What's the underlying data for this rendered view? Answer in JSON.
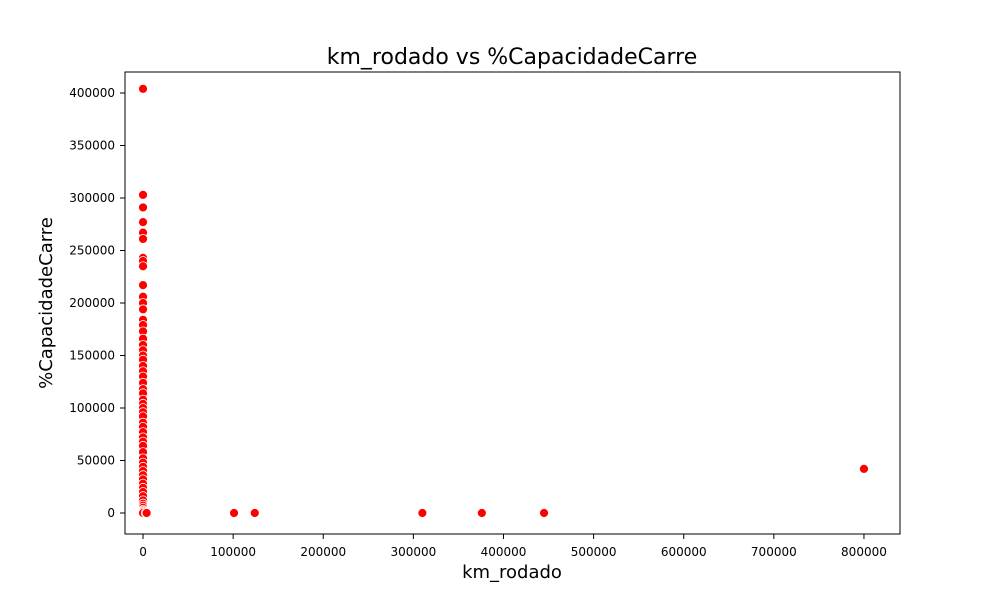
{
  "chart_data": {
    "type": "scatter",
    "title": "km_rodado vs %CapacidadeCarre",
    "xlabel": "km_rodado",
    "ylabel": "%CapacidadeCarre",
    "xlim": [
      -20000,
      840000
    ],
    "ylim": [
      -20000,
      420000
    ],
    "x_ticks": [
      {
        "value": 0,
        "label": "0"
      },
      {
        "value": 100000,
        "label": "100000"
      },
      {
        "value": 200000,
        "label": "200000"
      },
      {
        "value": 300000,
        "label": "300000"
      },
      {
        "value": 400000,
        "label": "400000"
      },
      {
        "value": 500000,
        "label": "500000"
      },
      {
        "value": 600000,
        "label": "600000"
      },
      {
        "value": 700000,
        "label": "700000"
      },
      {
        "value": 800000,
        "label": "800000"
      }
    ],
    "y_ticks": [
      {
        "value": 0,
        "label": "0"
      },
      {
        "value": 50000,
        "label": "50000"
      },
      {
        "value": 100000,
        "label": "100000"
      },
      {
        "value": 150000,
        "label": "150000"
      },
      {
        "value": 200000,
        "label": "200000"
      },
      {
        "value": 250000,
        "label": "250000"
      },
      {
        "value": 300000,
        "label": "300000"
      },
      {
        "value": 350000,
        "label": "350000"
      },
      {
        "value": 400000,
        "label": "400000"
      }
    ],
    "grid": false,
    "marker_color": "#ff0000",
    "marker_edge_color": "#ffffff",
    "series": [
      {
        "x": [
          0,
          0,
          0,
          0,
          0,
          0,
          0,
          0,
          0,
          0,
          0,
          0,
          0,
          0,
          0,
          0,
          0,
          0,
          0,
          0,
          0,
          0,
          0,
          0,
          0,
          0,
          0,
          0,
          0,
          0,
          0,
          0,
          0,
          0,
          0,
          0,
          0,
          0,
          0,
          0,
          0,
          0,
          0,
          0,
          0,
          0,
          0,
          0,
          0,
          0,
          0,
          0,
          0,
          0,
          0,
          0,
          0,
          3000,
          4000,
          101000,
          124000,
          310000,
          376000,
          445000,
          800000
        ],
        "y": [
          404000,
          303000,
          291000,
          277000,
          267000,
          261000,
          243000,
          240000,
          235000,
          217000,
          206000,
          200000,
          194000,
          184000,
          179000,
          173000,
          166000,
          160000,
          155000,
          150000,
          146000,
          140000,
          135000,
          130000,
          124000,
          118000,
          114000,
          108000,
          104000,
          100000,
          96000,
          92000,
          86000,
          82000,
          77000,
          72000,
          68000,
          64000,
          58000,
          52000,
          48000,
          44000,
          40000,
          36000,
          32000,
          28000,
          24000,
          20000,
          16000,
          12000,
          9000,
          7000,
          5000,
          3000,
          2000,
          1000,
          0,
          0,
          0,
          0,
          0,
          0,
          0,
          0,
          42000
        ]
      }
    ]
  }
}
